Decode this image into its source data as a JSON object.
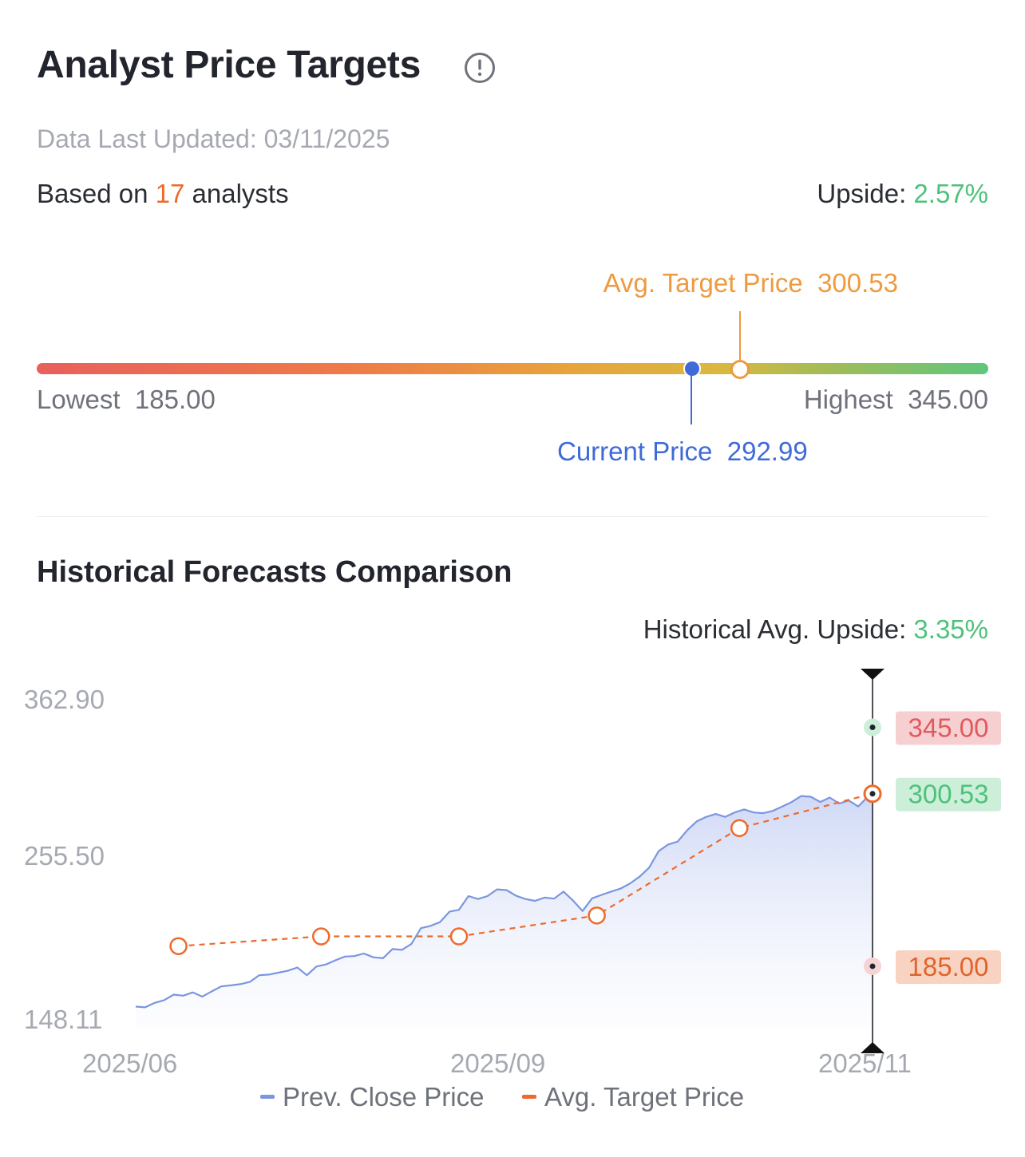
{
  "header": {
    "title": "Analyst Price Targets",
    "updated": "Data Last Updated: 03/11/2025",
    "based_prefix": "Based on",
    "analyst_count": "17",
    "based_suffix": "analysts",
    "upside_label": "Upside:",
    "upside_value": "2.57%"
  },
  "range": {
    "avg_label": "Avg. Target Price",
    "avg_value": "300.53",
    "lowest_label": "Lowest",
    "lowest_value": "185.00",
    "highest_label": "Highest",
    "highest_value": "345.00",
    "current_label": "Current Price",
    "current_value": "292.99"
  },
  "history": {
    "title": "Historical Forecasts Comparison",
    "upside_label": "Historical Avg. Upside:",
    "upside_value": "3.35%"
  },
  "colors": {
    "price_line": "#7b96e0",
    "target_line": "#ee6a2c",
    "high_tag_bg": "#f6cfd0",
    "high_tag_fg": "#e05a5e",
    "avg_tag_bg": "#cdeed9",
    "avg_tag_fg": "#4cc27a",
    "low_tag_bg": "#f8d3c2",
    "low_tag_fg": "#e0642c"
  },
  "chart_data": {
    "type": "line",
    "y_ticks": [
      "362.90",
      "255.50",
      "148.11"
    ],
    "ylim": [
      148.11,
      362.9
    ],
    "x_ticks": [
      "2025/06",
      "2025/09",
      "2025/11"
    ],
    "xlim": [
      "2025-06-01",
      "2025-11-03"
    ],
    "legend_position": "bottom",
    "legend": [
      "Prev. Close Price",
      "Avg. Target Price"
    ],
    "series": [
      {
        "name": "Prev. Close Price",
        "x": [
          "2025-06-01",
          "2025-06-03",
          "2025-06-05",
          "2025-06-07",
          "2025-06-09",
          "2025-06-11",
          "2025-06-13",
          "2025-06-15",
          "2025-06-17",
          "2025-06-19",
          "2025-06-21",
          "2025-06-23",
          "2025-06-25",
          "2025-06-27",
          "2025-06-29",
          "2025-07-01",
          "2025-07-03",
          "2025-07-05",
          "2025-07-07",
          "2025-07-09",
          "2025-07-11",
          "2025-07-13",
          "2025-07-15",
          "2025-07-17",
          "2025-07-19",
          "2025-07-21",
          "2025-07-23",
          "2025-07-25",
          "2025-07-27",
          "2025-07-29",
          "2025-07-31",
          "2025-08-02",
          "2025-08-04",
          "2025-08-06",
          "2025-08-08",
          "2025-08-10",
          "2025-08-12",
          "2025-08-14",
          "2025-08-16",
          "2025-08-18",
          "2025-08-20",
          "2025-08-22",
          "2025-08-24",
          "2025-08-26",
          "2025-08-28",
          "2025-08-30",
          "2025-09-01",
          "2025-09-03",
          "2025-09-05",
          "2025-09-07",
          "2025-09-09",
          "2025-09-11",
          "2025-09-13",
          "2025-09-15",
          "2025-09-17",
          "2025-09-19",
          "2025-09-21",
          "2025-09-23",
          "2025-09-25",
          "2025-09-27",
          "2025-09-29",
          "2025-10-01",
          "2025-10-03",
          "2025-10-05",
          "2025-10-07",
          "2025-10-09",
          "2025-10-11",
          "2025-10-13",
          "2025-10-15",
          "2025-10-17",
          "2025-10-19",
          "2025-10-21",
          "2025-10-23",
          "2025-10-25",
          "2025-10-27",
          "2025-10-29",
          "2025-10-31",
          "2025-11-02",
          "2025-11-03"
        ],
        "y": [
          158.0,
          157.5,
          160.5,
          162.3,
          166.0,
          165.3,
          167.5,
          164.7,
          168.2,
          171.5,
          172.2,
          173.0,
          174.5,
          179.0,
          179.4,
          180.7,
          182.0,
          184.2,
          179.0,
          184.8,
          186.2,
          189.0,
          191.5,
          191.8,
          193.5,
          191.0,
          190.4,
          196.5,
          196.0,
          200.0,
          210.5,
          212.0,
          214.5,
          221.5,
          222.8,
          232.0,
          230.0,
          232.0,
          236.5,
          236.0,
          232.2,
          230.0,
          228.8,
          231.0,
          230.3,
          235.0,
          229.0,
          222.0,
          230.5,
          232.8,
          235.0,
          237.0,
          240.5,
          245.0,
          251.0,
          262.0,
          266.5,
          268.5,
          276.0,
          282.0,
          285.0,
          287.0,
          285.0,
          288.0,
          290.0,
          288.0,
          287.5,
          289.0,
          292.0,
          295.0,
          299.0,
          298.5,
          295.0,
          298.0,
          294.0,
          296.0,
          292.0,
          298.5,
          300.5
        ]
      },
      {
        "name": "Avg. Target Price",
        "x": [
          "2025-06-10",
          "2025-07-10",
          "2025-08-08",
          "2025-09-06",
          "2025-10-06",
          "2025-11-03"
        ],
        "y": [
          198.5,
          205.0,
          205.0,
          219.0,
          277.5,
          300.53
        ]
      }
    ],
    "marker_date": "2025-11-03",
    "marker_values": {
      "highest": "345.00",
      "avg": "300.53",
      "lowest": "185.00"
    }
  }
}
